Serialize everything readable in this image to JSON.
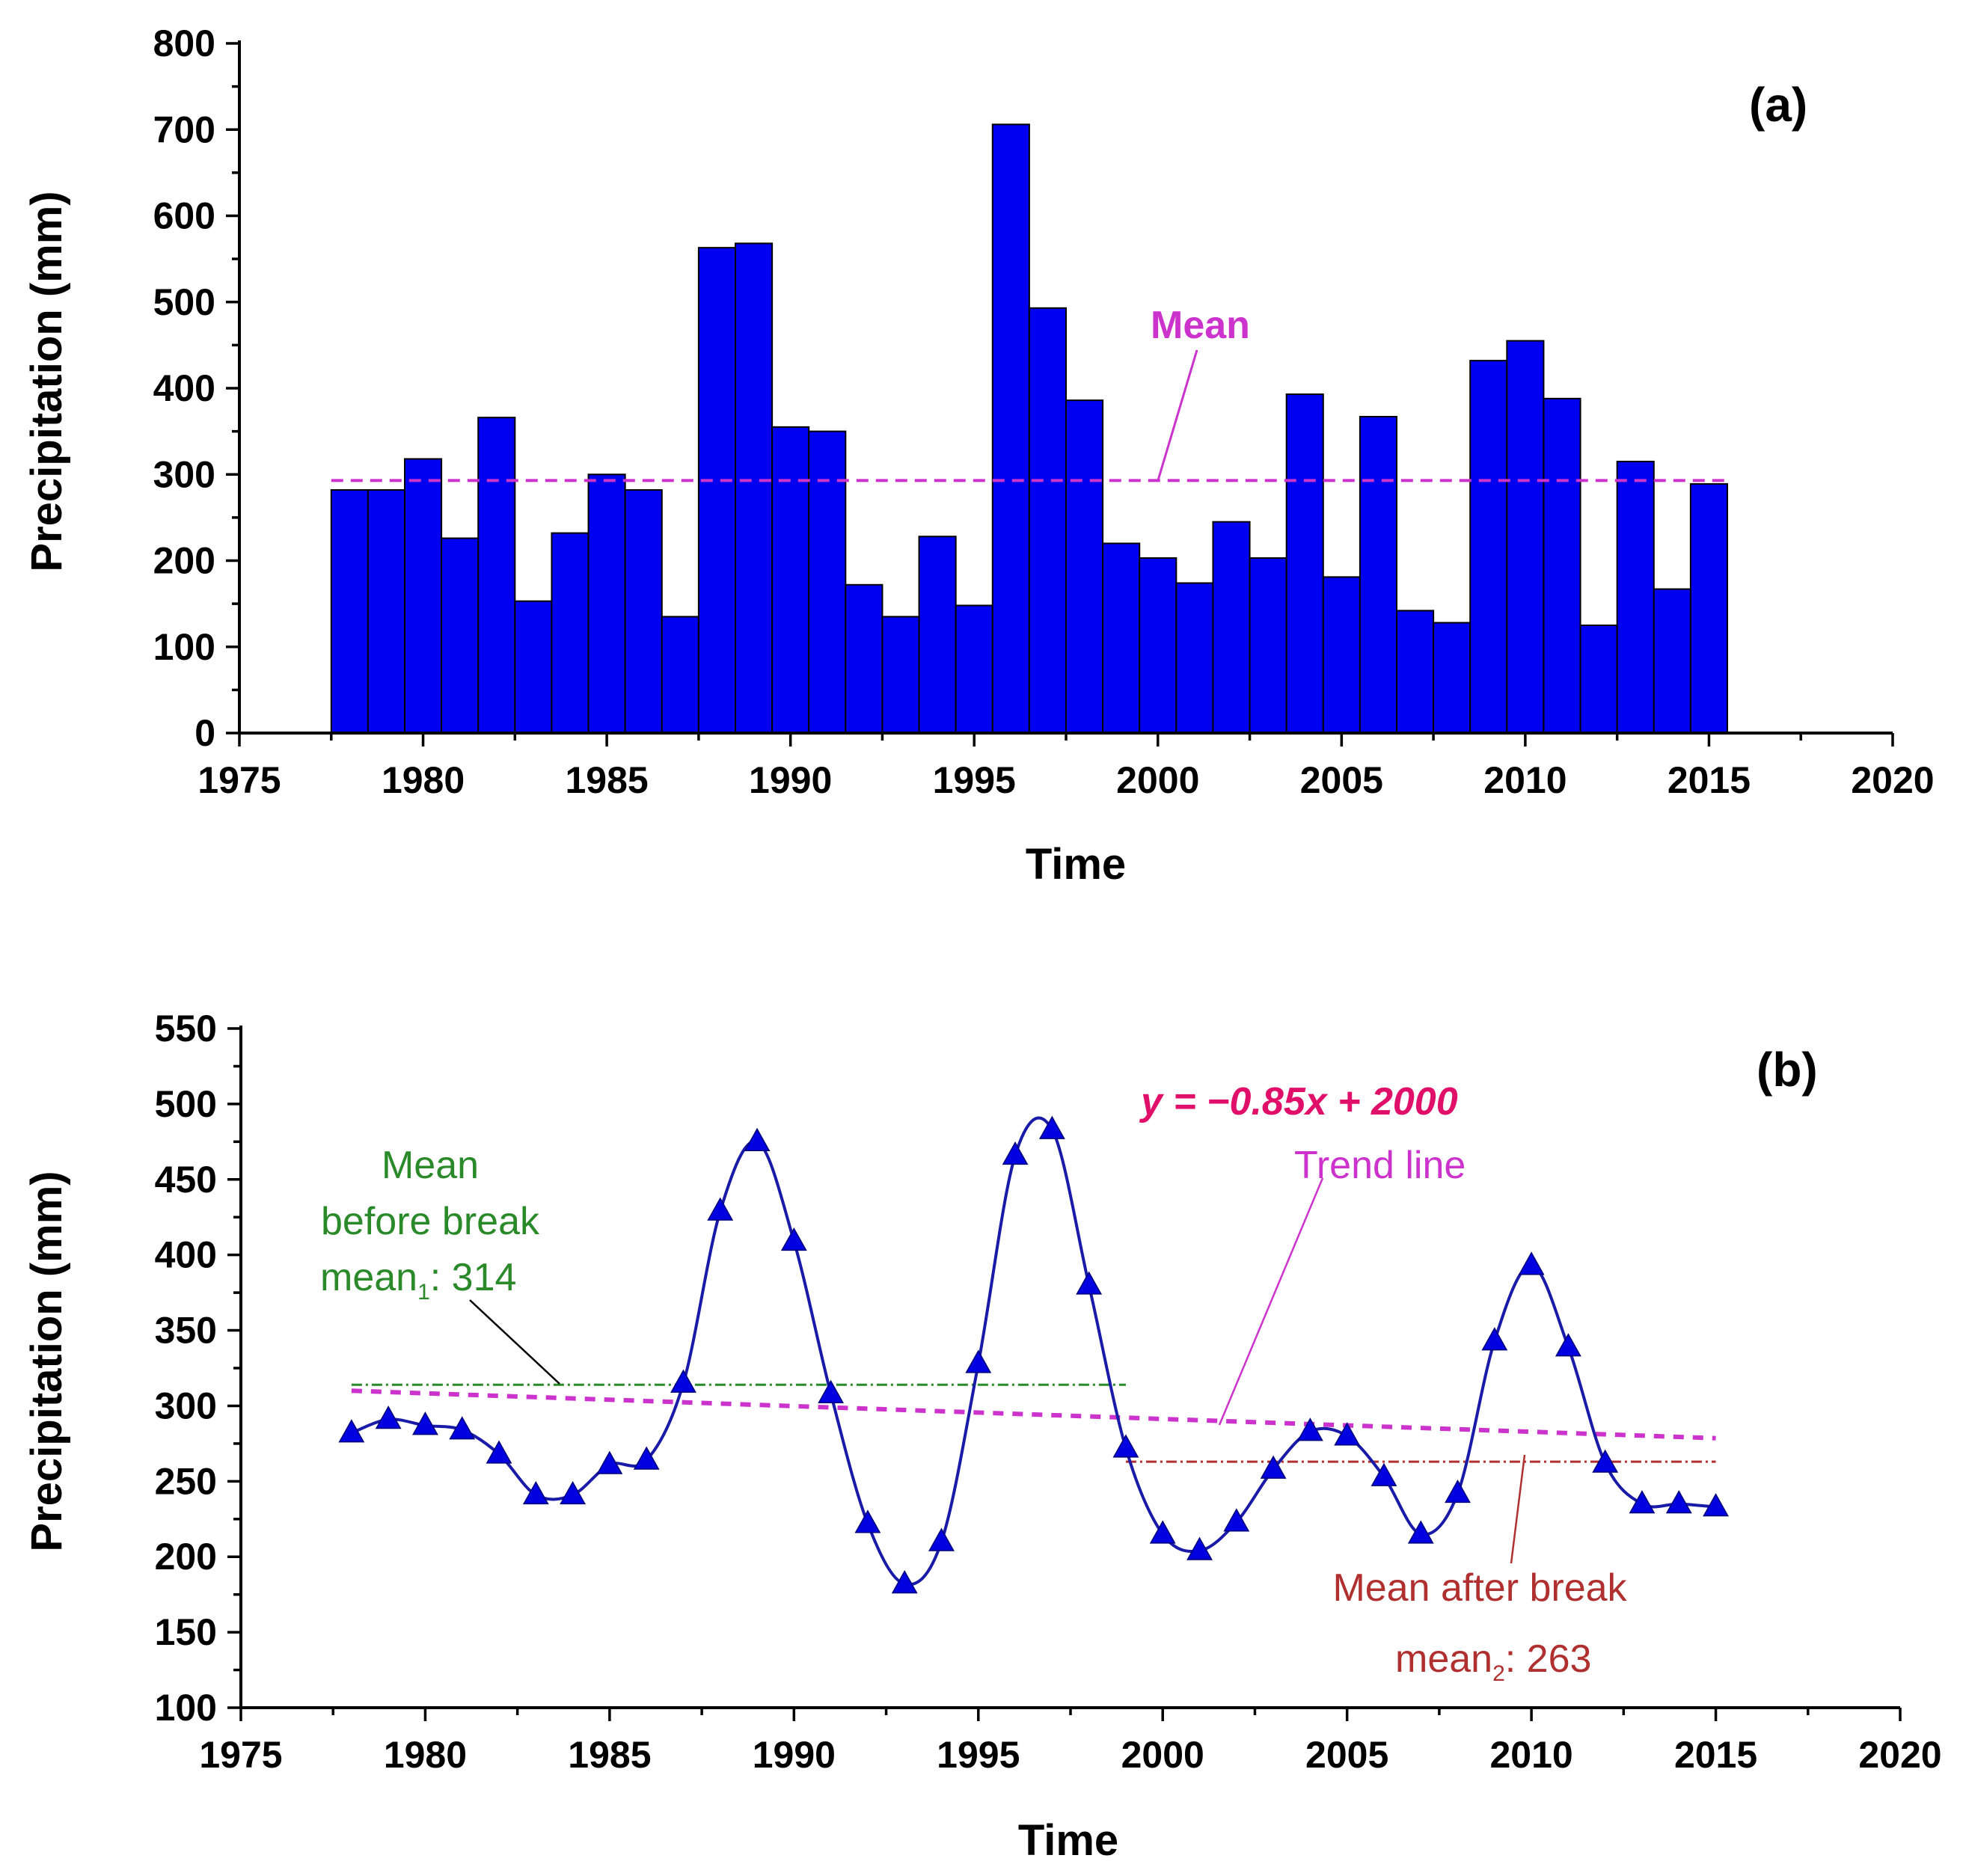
{
  "chart_data": [
    {
      "type": "bar",
      "panel_label": "(a)",
      "xlabel": "Time",
      "ylabel": "Precipitation (mm)",
      "xlim": [
        1975,
        2020
      ],
      "ylim": [
        0,
        800
      ],
      "xticks": [
        "1975",
        "1980",
        "1985",
        "1990",
        "1995",
        "2000",
        "2005",
        "2010",
        "2015",
        "2020"
      ],
      "yticks": [
        "0",
        "100",
        "200",
        "300",
        "400",
        "500",
        "600",
        "700",
        "800"
      ],
      "categories": [
        1978,
        1979,
        1980,
        1981,
        1982,
        1983,
        1984,
        1985,
        1986,
        1987,
        1988,
        1989,
        1990,
        1991,
        1992,
        1993,
        1994,
        1995,
        1996,
        1997,
        1998,
        1999,
        2000,
        2001,
        2002,
        2003,
        2004,
        2005,
        2006,
        2007,
        2008,
        2009,
        2010,
        2011,
        2012,
        2013,
        2014,
        2015
      ],
      "values": [
        282,
        282,
        318,
        226,
        366,
        153,
        232,
        300,
        282,
        135,
        563,
        568,
        355,
        350,
        172,
        135,
        228,
        148,
        706,
        493,
        386,
        220,
        203,
        174,
        245,
        203,
        393,
        181,
        367,
        142,
        128,
        432,
        455,
        388,
        125,
        315,
        167,
        289
      ],
      "mean_line": {
        "value": 293,
        "label": "Mean",
        "color": "#cc33cc"
      },
      "bar_color": "#0000f0"
    },
    {
      "type": "line",
      "panel_label": "(b)",
      "xlabel": "Time",
      "ylabel": "Precipitation (mm)",
      "xlim": [
        1975,
        2020
      ],
      "ylim": [
        100,
        550
      ],
      "xticks": [
        "1975",
        "1980",
        "1985",
        "1990",
        "1995",
        "2000",
        "2005",
        "2010",
        "2015",
        "2020"
      ],
      "yticks": [
        "100",
        "150",
        "200",
        "250",
        "300",
        "350",
        "400",
        "450",
        "500",
        "550"
      ],
      "x": [
        1978,
        1979,
        1980,
        1981,
        1982,
        1983,
        1984,
        1985,
        1986,
        1987,
        1988,
        1989,
        1990,
        1991,
        1992,
        1993,
        1994,
        1995,
        1996,
        1997,
        1998,
        1999,
        2000,
        2001,
        2002,
        2003,
        2004,
        2005,
        2006,
        2007,
        2008,
        2009,
        2010,
        2011,
        2012,
        2013,
        2014,
        2015
      ],
      "values": [
        282,
        291,
        287,
        284,
        268,
        241,
        241,
        261,
        264,
        315,
        429,
        475,
        409,
        308,
        222,
        182,
        210,
        328,
        466,
        483,
        380,
        272,
        215,
        204,
        223,
        258,
        283,
        280,
        253,
        215,
        242,
        343,
        393,
        339,
        262,
        235,
        235,
        233
      ],
      "series_color": "#1a1aa8",
      "marker_color": "#0000e0",
      "mean_before": {
        "value": 314,
        "x_range": [
          1978,
          1999
        ],
        "color": "#2a8a2a"
      },
      "mean_after": {
        "value": 263,
        "x_range": [
          1999,
          2015
        ],
        "color": "#b03030"
      },
      "trend": {
        "slope": -0.85,
        "intercept": 2000,
        "x_range": [
          1978,
          2015
        ],
        "color": "#cc33cc"
      }
    }
  ],
  "annotations": {
    "a_mean": "Mean",
    "b_equation": "y = −0.85x + 2000",
    "b_trend": "Trend line",
    "b_before_1": "Mean",
    "b_before_2": "before break",
    "b_before_3_prefix": "mean",
    "b_before_3_sub": "1",
    "b_before_3_suffix": ": 314",
    "b_after_1": "Mean after break",
    "b_after_2_prefix": "mean",
    "b_after_2_sub": "2",
    "b_after_2_suffix": ": 263"
  }
}
